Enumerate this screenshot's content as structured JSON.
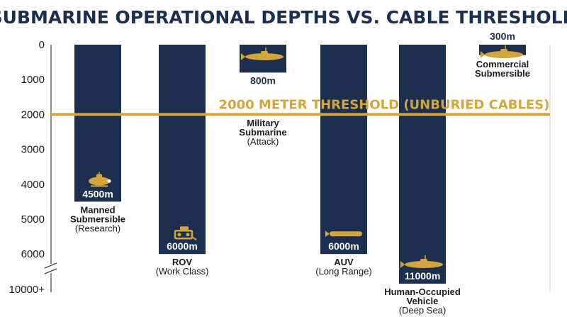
{
  "colors": {
    "bar": "#1c2f4f",
    "threshold": "#d4a53a",
    "icon": "#d4a53a",
    "axis": "#444444"
  },
  "chart_data": {
    "type": "bar",
    "title": "SUBMARINE OPERATIONAL DEPTHS VS. CABLE THRESHOLD",
    "y_axis": {
      "ticks": [
        "0",
        "1000",
        "2000",
        "3000",
        "4000",
        "5000",
        "6000",
        "10000+"
      ],
      "inverted": true,
      "break_after": "6000"
    },
    "threshold": {
      "value": 2000,
      "label": "2000 METER THRESHOLD (UNBURIED CABLES)"
    },
    "bars": [
      {
        "id": "manned",
        "value": 4500,
        "value_label": "4500m",
        "label_lines": [
          "Manned",
          "Submersible"
        ],
        "sub_label": "(Research)",
        "icon": "submersible-icon"
      },
      {
        "id": "rov",
        "value": 6000,
        "value_label": "6000m",
        "label_lines": [
          "ROV"
        ],
        "sub_label": "(Work Class)",
        "icon": "rov-icon"
      },
      {
        "id": "military",
        "value": 800,
        "value_label": "800m",
        "label_lines": [
          "Military",
          "Submarine"
        ],
        "sub_label": "(Attack)",
        "icon": "submarine-icon"
      },
      {
        "id": "auv",
        "value": 6000,
        "value_label": "6000m",
        "label_lines": [
          "AUV"
        ],
        "sub_label": "(Long Range)",
        "icon": "torpedo-icon"
      },
      {
        "id": "hov",
        "value": 11000,
        "value_label": "11000m",
        "label_lines": [
          "Human-Occupied",
          "Vehicle"
        ],
        "sub_label": "(Deep Sea)",
        "icon": "submarine-icon"
      },
      {
        "id": "commercial",
        "value": 300,
        "value_label": "300m",
        "label_lines": [
          "Commercial",
          "Submersible"
        ],
        "sub_label": "",
        "icon": "submarine-icon"
      }
    ]
  }
}
